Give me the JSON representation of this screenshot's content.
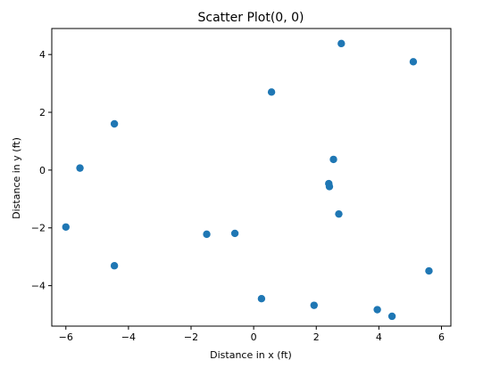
{
  "chart_data": {
    "type": "scatter",
    "title": "Scatter Plot(0, 0)",
    "xlabel": "Distance in x (ft)",
    "ylabel": "Distance in y (ft)",
    "xlim": [
      -6.45,
      6.3
    ],
    "ylim": [
      -5.4,
      4.9
    ],
    "xticks": [
      -6,
      -4,
      -2,
      0,
      2,
      4,
      6
    ],
    "yticks": [
      -4,
      -2,
      0,
      2,
      4
    ],
    "xtick_labels": [
      "−6",
      "−4",
      "−2",
      "0",
      "2",
      "4",
      "6"
    ],
    "ytick_labels": [
      "−4",
      "−2",
      "0",
      "2",
      "4"
    ],
    "grid": false,
    "legend": "none",
    "marker_color": "#1f77b4",
    "points": [
      {
        "x": 2.8,
        "y": 4.38
      },
      {
        "x": 5.1,
        "y": 3.75
      },
      {
        "x": 0.57,
        "y": 2.7
      },
      {
        "x": -4.45,
        "y": 1.6
      },
      {
        "x": -5.55,
        "y": 0.07
      },
      {
        "x": 2.55,
        "y": 0.37
      },
      {
        "x": 2.4,
        "y": -0.47
      },
      {
        "x": 2.42,
        "y": -0.57
      },
      {
        "x": 2.72,
        "y": -1.52
      },
      {
        "x": -6.0,
        "y": -1.97
      },
      {
        "x": -1.5,
        "y": -2.22
      },
      {
        "x": -0.6,
        "y": -2.19
      },
      {
        "x": -4.45,
        "y": -3.31
      },
      {
        "x": 5.6,
        "y": -3.49
      },
      {
        "x": 0.25,
        "y": -4.45
      },
      {
        "x": 1.93,
        "y": -4.68
      },
      {
        "x": 3.95,
        "y": -4.83
      },
      {
        "x": 4.42,
        "y": -5.06
      }
    ]
  }
}
